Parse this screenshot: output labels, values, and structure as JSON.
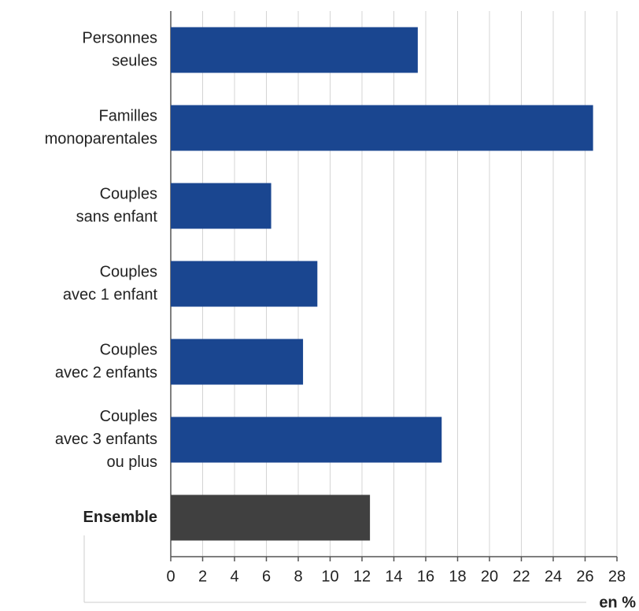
{
  "chart_data": {
    "type": "barh",
    "categories": [
      [
        "Personnes",
        "seules"
      ],
      [
        "Familles",
        "monoparentales"
      ],
      [
        "Couples",
        "sans enfant"
      ],
      [
        "Couples",
        "avec 1 enfant"
      ],
      [
        "Couples",
        "avec 2 enfants"
      ],
      [
        "Couples",
        "avec 3 enfants",
        "ou plus"
      ],
      [
        "Ensemble"
      ]
    ],
    "values": [
      15.5,
      26.5,
      6.3,
      9.2,
      8.3,
      17.0,
      12.5
    ],
    "colors": [
      "#1a4690",
      "#1a4690",
      "#1a4690",
      "#1a4690",
      "#1a4690",
      "#1a4690",
      "#404040"
    ],
    "xlim": [
      0,
      28
    ],
    "xticks": [
      0,
      2,
      4,
      6,
      8,
      10,
      12,
      14,
      16,
      18,
      20,
      22,
      24,
      26,
      28
    ],
    "xlabel": "en %",
    "grid": true
  }
}
